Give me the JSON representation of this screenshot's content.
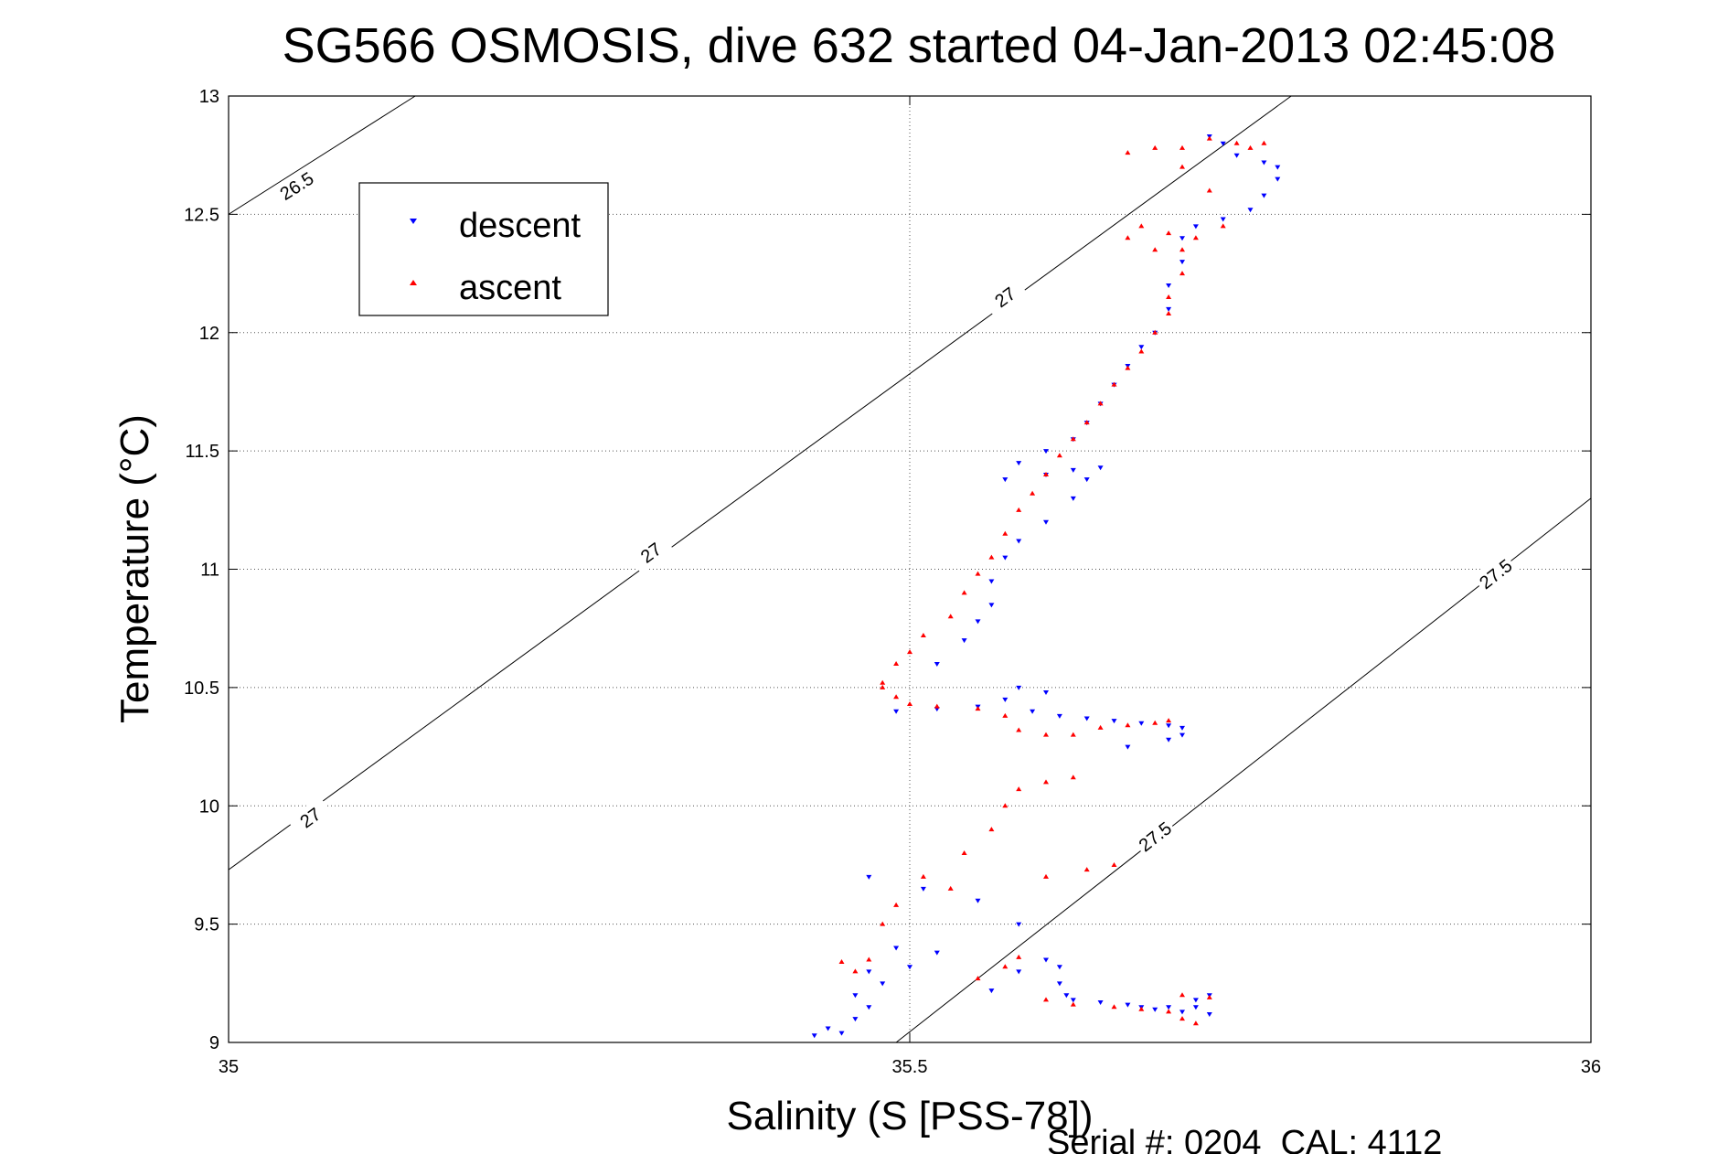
{
  "chart_data": {
    "type": "scatter",
    "title": "SG566 OSMOSIS, dive 632 started 04-Jan-2013 02:45:08",
    "xlabel": "Salinity (S [PSS-78])",
    "ylabel": "Temperature (°C)",
    "xlim": [
      35,
      36
    ],
    "ylim": [
      9,
      13
    ],
    "x_ticks": [
      35,
      35.5,
      36
    ],
    "x_tick_labels": [
      "35",
      "35.5",
      "36"
    ],
    "y_ticks": [
      9,
      9.5,
      10,
      10.5,
      11,
      11.5,
      12,
      12.5,
      13
    ],
    "y_tick_labels": [
      "9",
      "9.5",
      "10",
      "10.5",
      "11",
      "11.5",
      "12",
      "12.5",
      "13"
    ],
    "grid": true,
    "legend_position": "top-left",
    "footer": "Serial #: 0204  CAL: 4112",
    "density_contours": [
      {
        "label": "26.5",
        "points": [
          [
            35,
            12.5
          ],
          [
            35.137,
            13
          ]
        ],
        "label_at": [
          35.05,
          12.62
        ]
      },
      {
        "label": "27",
        "points": [
          [
            35,
            9.73
          ],
          [
            35.78,
            13
          ]
        ],
        "label_at": [
          35.06,
          9.95
        ]
      },
      {
        "label": "27",
        "label_at": [
          35.31,
          11.07
        ]
      },
      {
        "label": "27",
        "label_at": [
          35.57,
          12.15
        ]
      },
      {
        "label": "27.5",
        "points": [
          [
            35.49,
            9
          ],
          [
            36,
            11.3
          ]
        ],
        "label_at": [
          35.68,
          9.87
        ]
      },
      {
        "label": "27.5",
        "label_at": [
          35.93,
          10.98
        ]
      }
    ],
    "series": [
      {
        "name": "descent",
        "color": "#0000ff",
        "marker": "triangle-down",
        "points": [
          [
            35.43,
            9.03
          ],
          [
            35.44,
            9.06
          ],
          [
            35.45,
            9.04
          ],
          [
            35.46,
            9.1
          ],
          [
            35.47,
            9.15
          ],
          [
            35.46,
            9.2
          ],
          [
            35.48,
            9.25
          ],
          [
            35.47,
            9.3
          ],
          [
            35.5,
            9.32
          ],
          [
            35.52,
            9.38
          ],
          [
            35.49,
            9.4
          ],
          [
            35.47,
            9.7
          ],
          [
            35.51,
            9.65
          ],
          [
            35.55,
            9.6
          ],
          [
            35.58,
            9.5
          ],
          [
            35.56,
            9.22
          ],
          [
            35.58,
            9.3
          ],
          [
            35.6,
            9.35
          ],
          [
            35.61,
            9.32
          ],
          [
            35.61,
            9.25
          ],
          [
            35.615,
            9.2
          ],
          [
            35.62,
            9.18
          ],
          [
            35.64,
            9.17
          ],
          [
            35.66,
            9.16
          ],
          [
            35.67,
            9.15
          ],
          [
            35.68,
            9.14
          ],
          [
            35.69,
            9.15
          ],
          [
            35.7,
            9.13
          ],
          [
            35.71,
            9.15
          ],
          [
            35.72,
            9.12
          ],
          [
            35.72,
            9.2
          ],
          [
            35.71,
            9.18
          ],
          [
            35.49,
            10.4
          ],
          [
            35.52,
            10.41
          ],
          [
            35.55,
            10.42
          ],
          [
            35.57,
            10.45
          ],
          [
            35.59,
            10.4
          ],
          [
            35.61,
            10.38
          ],
          [
            35.63,
            10.37
          ],
          [
            35.65,
            10.36
          ],
          [
            35.67,
            10.35
          ],
          [
            35.69,
            10.34
          ],
          [
            35.7,
            10.3
          ],
          [
            35.69,
            10.28
          ],
          [
            35.7,
            10.33
          ],
          [
            35.66,
            10.25
          ],
          [
            35.6,
            10.48
          ],
          [
            35.58,
            10.5
          ],
          [
            35.52,
            10.6
          ],
          [
            35.54,
            10.7
          ],
          [
            35.55,
            10.78
          ],
          [
            35.56,
            10.85
          ],
          [
            35.56,
            10.95
          ],
          [
            35.57,
            11.05
          ],
          [
            35.58,
            11.12
          ],
          [
            35.6,
            11.2
          ],
          [
            35.62,
            11.3
          ],
          [
            35.63,
            11.38
          ],
          [
            35.64,
            11.43
          ],
          [
            35.62,
            11.42
          ],
          [
            35.6,
            11.4
          ],
          [
            35.57,
            11.38
          ],
          [
            35.58,
            11.45
          ],
          [
            35.6,
            11.5
          ],
          [
            35.62,
            11.55
          ],
          [
            35.63,
            11.62
          ],
          [
            35.64,
            11.7
          ],
          [
            35.65,
            11.78
          ],
          [
            35.66,
            11.86
          ],
          [
            35.67,
            11.94
          ],
          [
            35.68,
            12.0
          ],
          [
            35.69,
            12.1
          ],
          [
            35.69,
            12.2
          ],
          [
            35.7,
            12.3
          ],
          [
            35.7,
            12.4
          ],
          [
            35.71,
            12.45
          ],
          [
            35.73,
            12.48
          ],
          [
            35.75,
            12.52
          ],
          [
            35.76,
            12.58
          ],
          [
            35.77,
            12.65
          ],
          [
            35.77,
            12.7
          ],
          [
            35.76,
            12.72
          ],
          [
            35.74,
            12.75
          ],
          [
            35.73,
            12.8
          ],
          [
            35.72,
            12.83
          ]
        ]
      },
      {
        "name": "ascent",
        "color": "#ff0000",
        "marker": "triangle-up",
        "points": [
          [
            35.46,
            9.3
          ],
          [
            35.45,
            9.34
          ],
          [
            35.47,
            9.35
          ],
          [
            35.48,
            9.5
          ],
          [
            35.49,
            9.58
          ],
          [
            35.51,
            9.7
          ],
          [
            35.53,
            9.65
          ],
          [
            35.54,
            9.8
          ],
          [
            35.56,
            9.9
          ],
          [
            35.57,
            10.0
          ],
          [
            35.58,
            10.07
          ],
          [
            35.6,
            10.1
          ],
          [
            35.62,
            10.12
          ],
          [
            35.6,
            9.7
          ],
          [
            35.63,
            9.73
          ],
          [
            35.65,
            9.75
          ],
          [
            35.55,
            9.27
          ],
          [
            35.57,
            9.32
          ],
          [
            35.58,
            9.36
          ],
          [
            35.6,
            9.18
          ],
          [
            35.62,
            9.16
          ],
          [
            35.65,
            9.15
          ],
          [
            35.67,
            9.14
          ],
          [
            35.69,
            9.13
          ],
          [
            35.7,
            9.1
          ],
          [
            35.71,
            9.08
          ],
          [
            35.72,
            9.19
          ],
          [
            35.7,
            9.2
          ],
          [
            35.48,
            10.52
          ],
          [
            35.48,
            10.5
          ],
          [
            35.49,
            10.46
          ],
          [
            35.5,
            10.43
          ],
          [
            35.52,
            10.42
          ],
          [
            35.55,
            10.41
          ],
          [
            35.57,
            10.38
          ],
          [
            35.58,
            10.32
          ],
          [
            35.6,
            10.3
          ],
          [
            35.62,
            10.3
          ],
          [
            35.64,
            10.33
          ],
          [
            35.66,
            10.34
          ],
          [
            35.68,
            10.35
          ],
          [
            35.69,
            10.36
          ],
          [
            35.49,
            10.6
          ],
          [
            35.5,
            10.65
          ],
          [
            35.51,
            10.72
          ],
          [
            35.53,
            10.8
          ],
          [
            35.54,
            10.9
          ],
          [
            35.55,
            10.98
          ],
          [
            35.56,
            11.05
          ],
          [
            35.57,
            11.15
          ],
          [
            35.58,
            11.25
          ],
          [
            35.59,
            11.32
          ],
          [
            35.6,
            11.4
          ],
          [
            35.61,
            11.48
          ],
          [
            35.62,
            11.55
          ],
          [
            35.63,
            11.62
          ],
          [
            35.64,
            11.7
          ],
          [
            35.65,
            11.78
          ],
          [
            35.66,
            11.85
          ],
          [
            35.67,
            11.92
          ],
          [
            35.68,
            12.0
          ],
          [
            35.69,
            12.08
          ],
          [
            35.69,
            12.15
          ],
          [
            35.7,
            12.25
          ],
          [
            35.7,
            12.35
          ],
          [
            35.68,
            12.35
          ],
          [
            35.66,
            12.4
          ],
          [
            35.67,
            12.45
          ],
          [
            35.69,
            12.42
          ],
          [
            35.71,
            12.4
          ],
          [
            35.73,
            12.45
          ],
          [
            35.72,
            12.6
          ],
          [
            35.7,
            12.7
          ],
          [
            35.7,
            12.78
          ],
          [
            35.68,
            12.78
          ],
          [
            35.66,
            12.76
          ],
          [
            35.72,
            12.82
          ],
          [
            35.74,
            12.8
          ],
          [
            35.75,
            12.78
          ],
          [
            35.76,
            12.8
          ]
        ]
      }
    ]
  }
}
